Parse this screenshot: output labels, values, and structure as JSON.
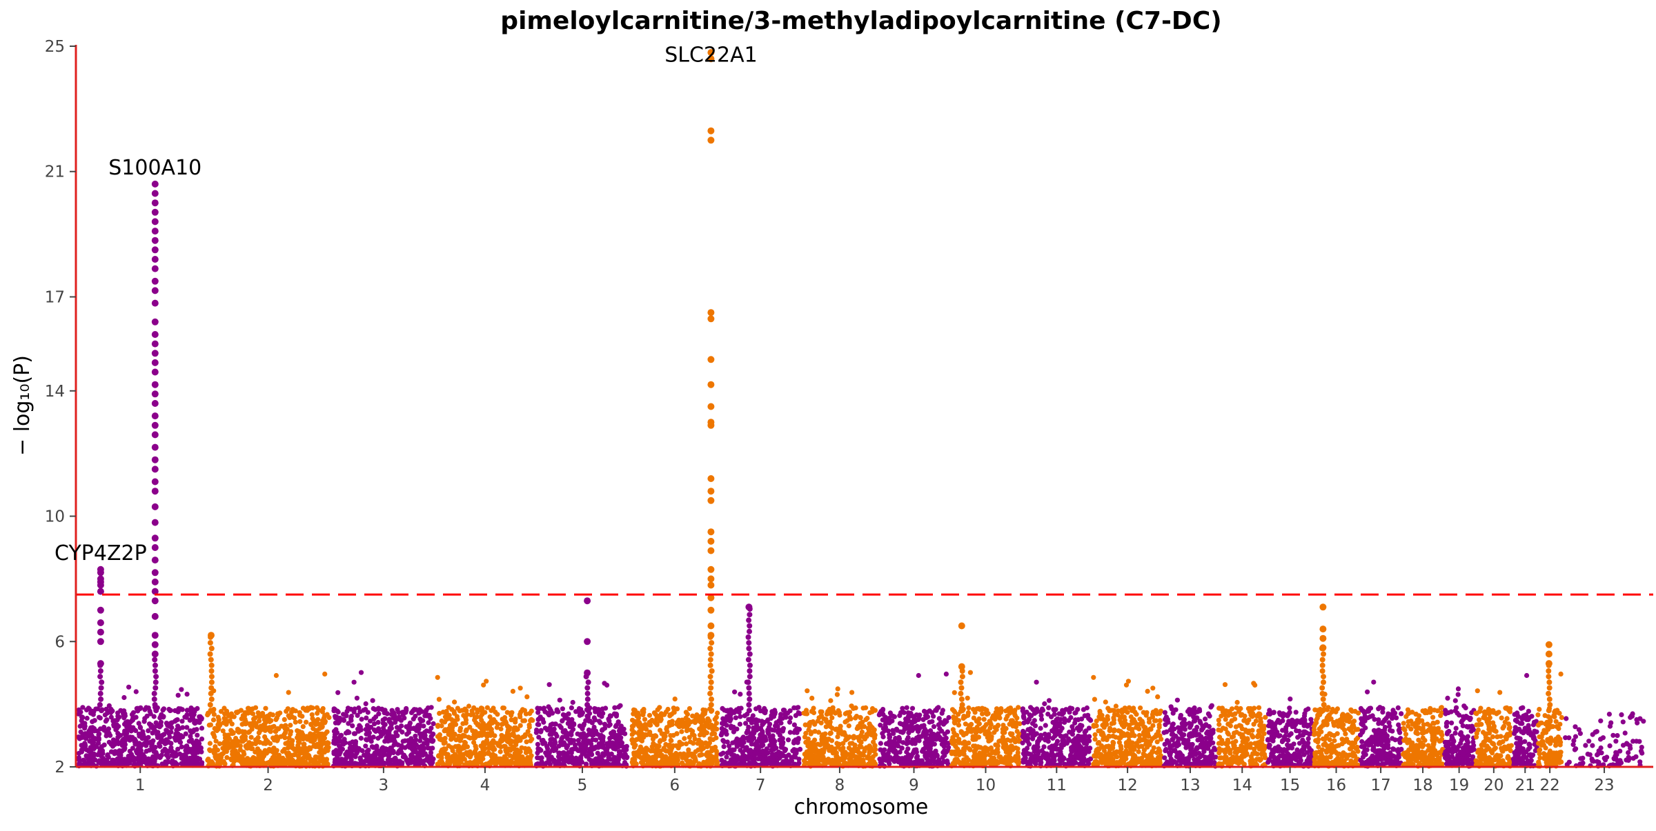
{
  "chart_data": {
    "type": "scatter",
    "subtype": "manhattan",
    "title": "pimeloylcarnitine/3-methyladipoylcarnitine (C7-DC)",
    "xlabel": "chromosome",
    "ylabel": "− log₁₀(P)",
    "ylim": [
      2,
      25
    ],
    "yticks": [
      2,
      6,
      10,
      14,
      17,
      21,
      25
    ],
    "significance_threshold": 7.5,
    "colors": {
      "odd": "#8B008B",
      "even": "#EE7600",
      "threshold": "#FF0000",
      "axis": "#E0201E"
    },
    "chromosomes": [
      {
        "label": "1",
        "start": 0.0,
        "end": 0.78
      },
      {
        "label": "2",
        "start": 0.78,
        "end": 1.55
      },
      {
        "label": "3",
        "start": 1.55,
        "end": 2.18
      },
      {
        "label": "4",
        "start": 2.18,
        "end": 2.78
      },
      {
        "label": "5",
        "start": 2.78,
        "end": 3.36
      },
      {
        "label": "6",
        "start": 3.36,
        "end": 3.9
      },
      {
        "label": "7",
        "start": 3.9,
        "end": 4.4
      },
      {
        "label": "8",
        "start": 4.4,
        "end": 4.86
      },
      {
        "label": "9",
        "start": 4.86,
        "end": 5.3
      },
      {
        "label": "10",
        "start": 5.3,
        "end": 5.73
      },
      {
        "label": "11",
        "start": 5.73,
        "end": 6.16
      },
      {
        "label": "12",
        "start": 6.16,
        "end": 6.59
      },
      {
        "label": "13",
        "start": 6.59,
        "end": 6.92
      },
      {
        "label": "14",
        "start": 6.92,
        "end": 7.22
      },
      {
        "label": "15",
        "start": 7.22,
        "end": 7.5
      },
      {
        "label": "16",
        "start": 7.5,
        "end": 7.78
      },
      {
        "label": "17",
        "start": 7.78,
        "end": 8.04
      },
      {
        "label": "18",
        "start": 8.04,
        "end": 8.29
      },
      {
        "label": "19",
        "start": 8.29,
        "end": 8.48
      },
      {
        "label": "20",
        "start": 8.48,
        "end": 8.71
      },
      {
        "label": "21",
        "start": 8.71,
        "end": 8.86
      },
      {
        "label": "22",
        "start": 8.86,
        "end": 9.01
      },
      {
        "label": "23",
        "start": 9.01,
        "end": 9.52
      }
    ],
    "peaks": [
      {
        "chrom": "1",
        "pos": 0.15,
        "values": [
          5.3,
          6.0,
          6.3,
          6.6,
          7.0,
          7.6,
          7.8,
          7.9,
          8.0,
          8.2,
          8.3
        ]
      },
      {
        "chrom": "1",
        "pos": 0.48,
        "values": [
          5.6,
          5.9,
          6.2,
          6.8,
          7.3,
          7.6,
          7.9,
          8.2,
          8.6,
          9.0,
          9.3,
          9.8,
          10.3,
          10.8,
          11.1,
          11.5,
          11.8,
          12.2,
          12.6,
          12.9,
          13.2,
          13.6,
          13.9,
          14.2,
          14.6,
          14.9,
          15.2,
          15.5,
          15.8,
          16.2,
          16.8,
          17.2,
          17.5,
          17.9,
          18.2,
          18.5,
          18.8,
          19.1,
          19.4,
          19.7,
          20.0,
          20.3,
          20.6
        ]
      },
      {
        "chrom": "6",
        "pos": 3.85,
        "values": [
          6.2,
          6.5,
          7.0,
          7.4,
          7.8,
          8.0,
          8.3,
          8.9,
          9.2,
          9.5,
          10.5,
          10.8,
          11.2,
          12.9,
          13.0,
          13.5,
          14.2,
          15.0,
          16.3,
          16.5,
          22.0,
          22.3,
          24.6,
          24.8
        ]
      },
      {
        "chrom": "16",
        "pos": 7.56,
        "values": [
          5.8,
          6.1,
          6.4,
          7.1
        ]
      },
      {
        "chrom": "22",
        "pos": 8.93,
        "values": [
          5.3,
          5.6,
          5.9
        ]
      },
      {
        "chrom": "5",
        "pos": 3.1,
        "values": [
          5.0,
          6.0,
          7.3
        ]
      },
      {
        "chrom": "10",
        "pos": 5.37,
        "values": [
          5.2,
          6.5
        ]
      },
      {
        "chrom": "2",
        "pos": 0.82,
        "values": [
          6.2
        ]
      },
      {
        "chrom": "7",
        "pos": 4.08,
        "values": [
          7.1
        ]
      }
    ],
    "annotations": [
      {
        "text": "CYP4Z2P",
        "chrom": "1",
        "pos": 0.15,
        "y": 8.3
      },
      {
        "text": "S100A10",
        "chrom": "1",
        "pos": 0.48,
        "y": 20.6
      },
      {
        "text": "SLC22A1",
        "chrom": "6",
        "pos": 3.85,
        "y": 24.2
      }
    ]
  }
}
